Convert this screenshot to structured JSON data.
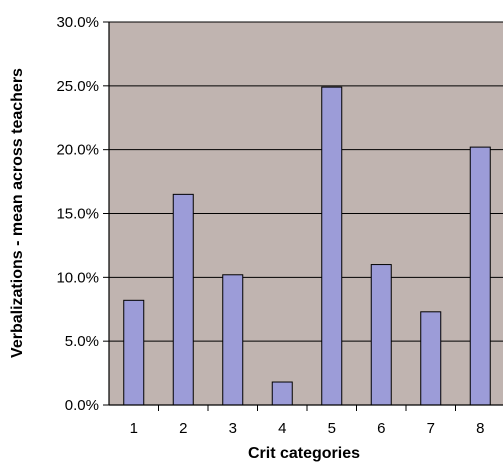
{
  "chart_data": {
    "type": "bar",
    "title": "",
    "xlabel": "Crit categories",
    "ylabel": "Verbalizations - mean across teachers",
    "categories": [
      "1",
      "2",
      "3",
      "4",
      "5",
      "6",
      "7",
      "8"
    ],
    "values": [
      8.2,
      16.5,
      10.2,
      1.8,
      24.9,
      11.0,
      7.3,
      20.2
    ],
    "value_unit": "%",
    "ylim": [
      0,
      30
    ],
    "yticks": [
      "0.0%",
      "5.0%",
      "10.0%",
      "15.0%",
      "20.0%",
      "25.0%",
      "30.0%"
    ],
    "grid": true,
    "legend": "none",
    "colors": {
      "plot_background": "#c0b4b0",
      "bar_fill": "#9c9cd8",
      "bar_stroke": "#000000",
      "gridline": "#000000"
    }
  }
}
